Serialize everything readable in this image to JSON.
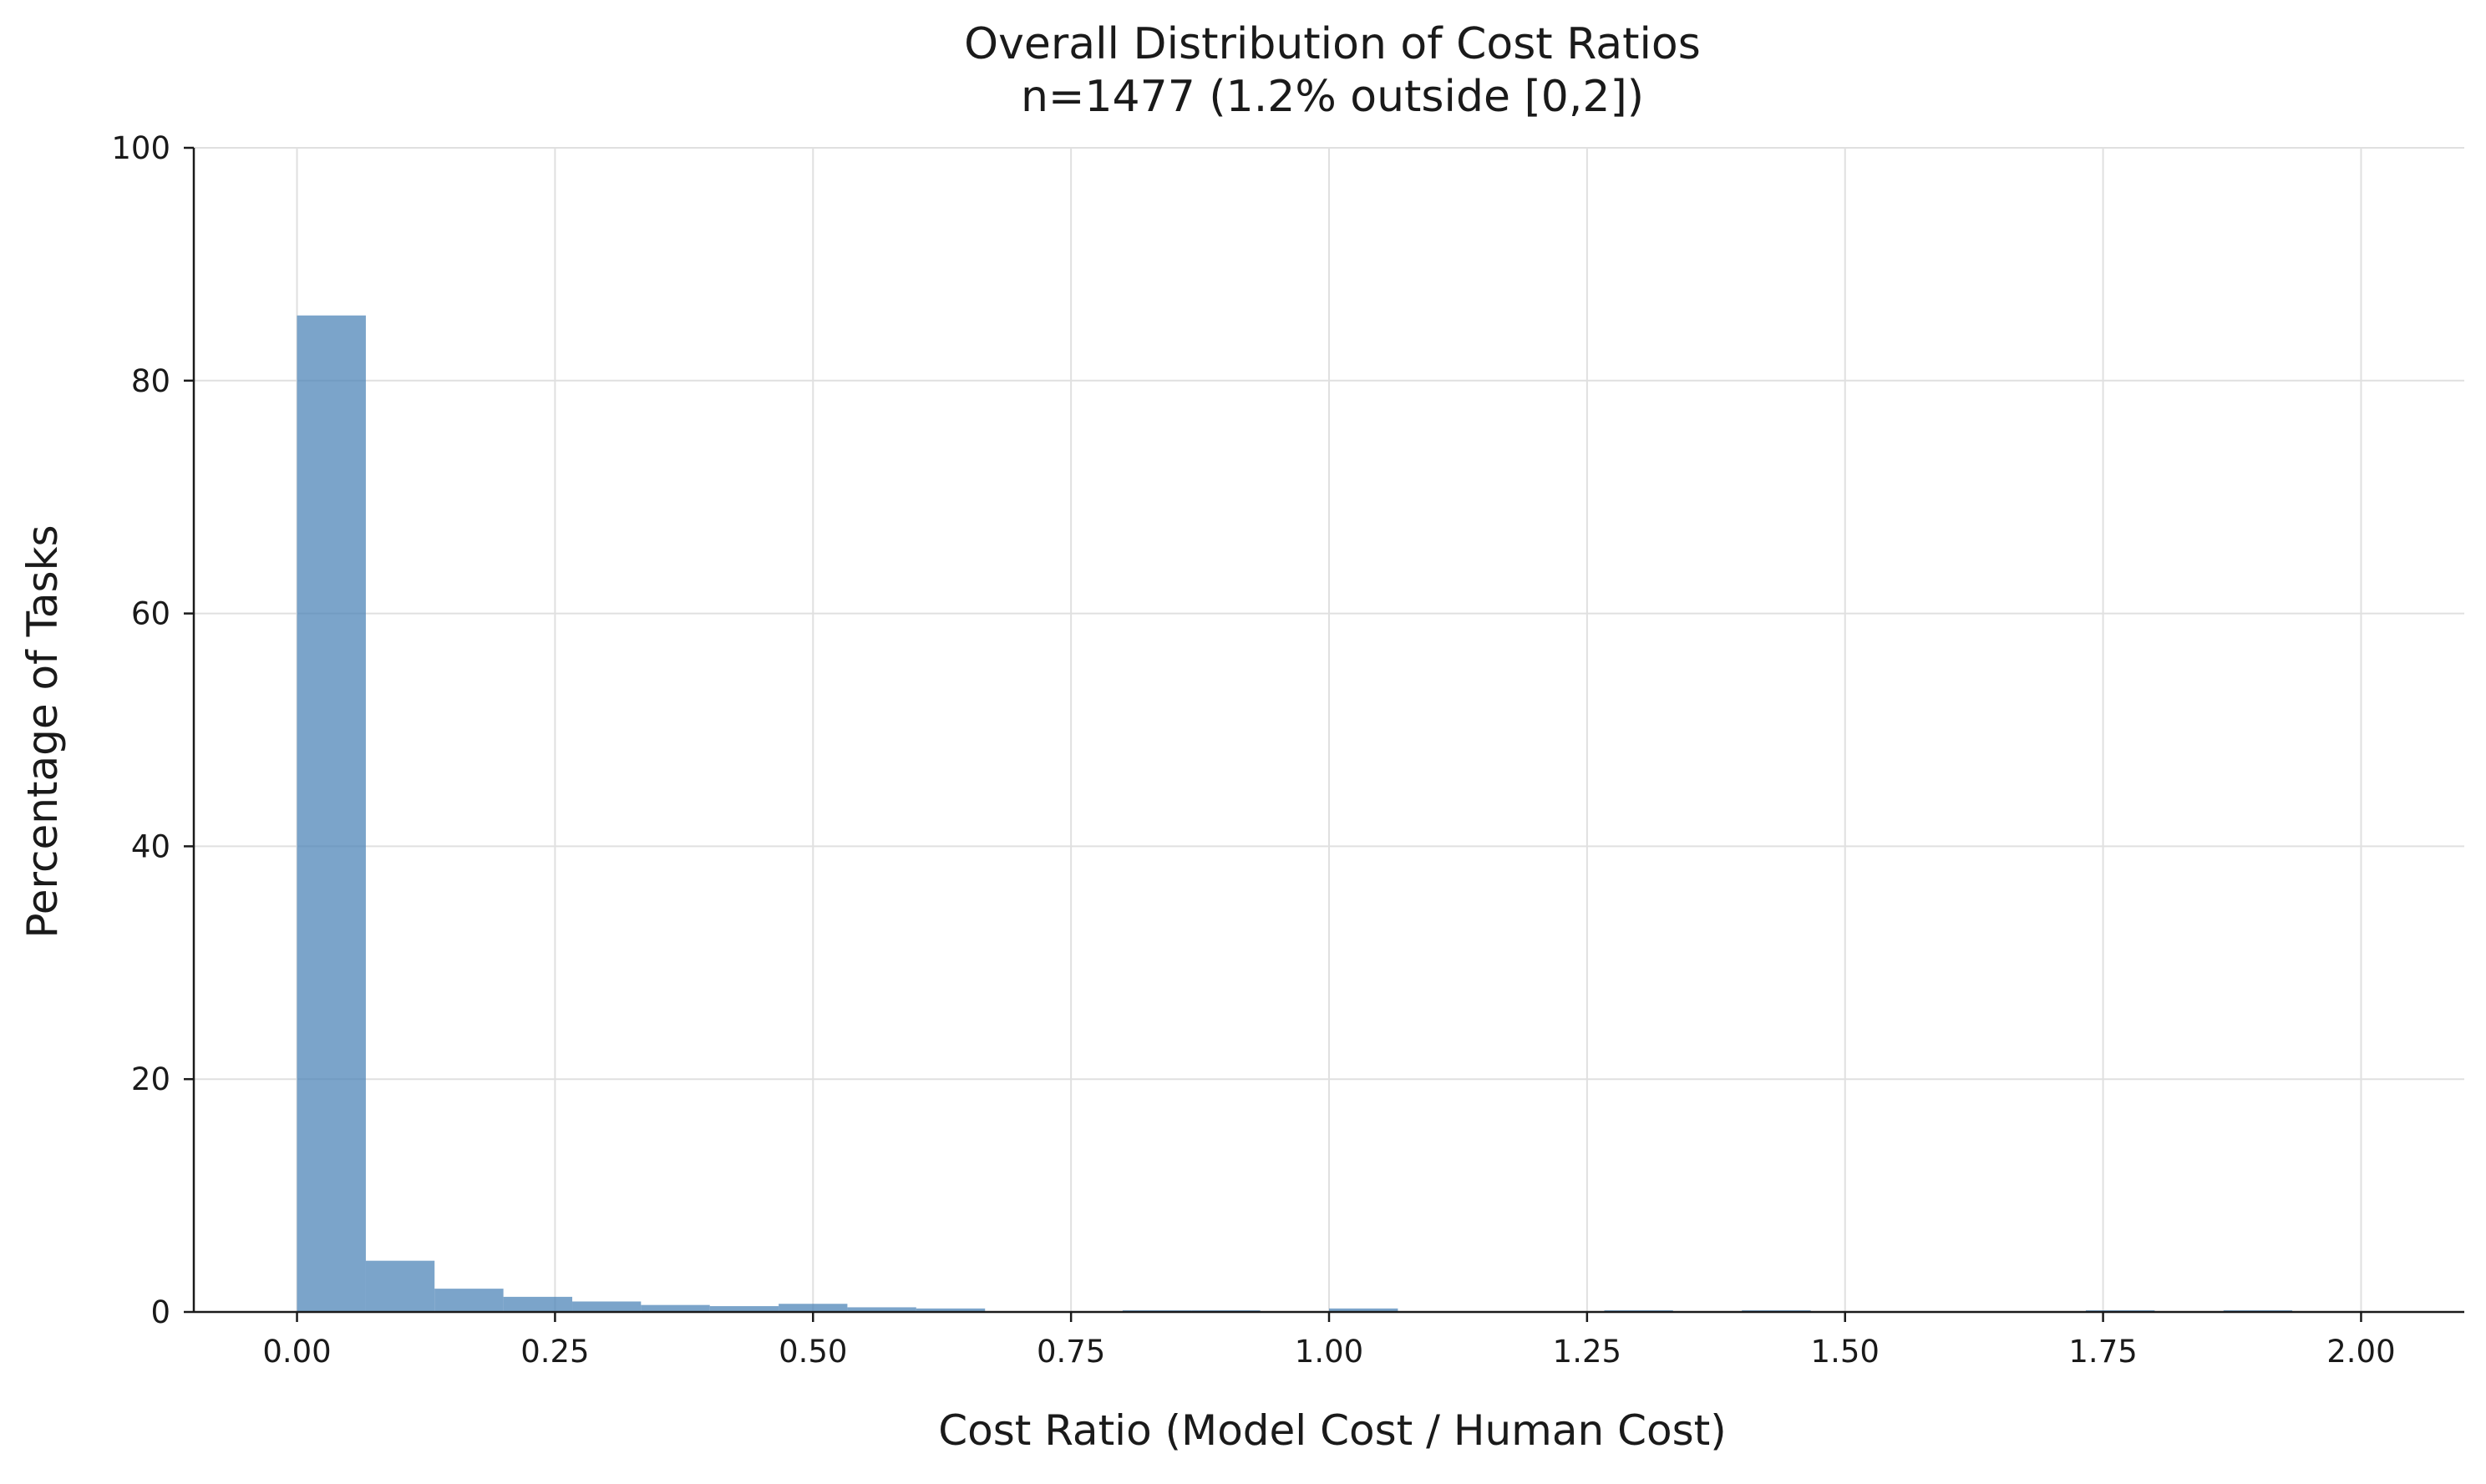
{
  "chart_data": {
    "type": "bar",
    "title": "Overall Distribution of Cost Ratios",
    "subtitle": "n=1477 (1.2% outside [0,2])",
    "xlabel": "Cost Ratio (Model Cost / Human Cost)",
    "ylabel": "Percentage of Tasks",
    "xlim": [
      -0.1,
      2.1
    ],
    "ylim": [
      0,
      100
    ],
    "x_ticks": [
      "0.00",
      "0.25",
      "0.50",
      "0.75",
      "1.00",
      "1.25",
      "1.50",
      "1.75",
      "2.00"
    ],
    "y_ticks": [
      "0",
      "20",
      "40",
      "60",
      "80",
      "100"
    ],
    "bin_width": 0.0667,
    "bins": [
      {
        "x0": 0.0,
        "x1": 0.0667,
        "value": 85.6
      },
      {
        "x0": 0.0667,
        "x1": 0.1333,
        "value": 4.4
      },
      {
        "x0": 0.1333,
        "x1": 0.2,
        "value": 2.0
      },
      {
        "x0": 0.2,
        "x1": 0.2667,
        "value": 1.3
      },
      {
        "x0": 0.2667,
        "x1": 0.3333,
        "value": 0.9
      },
      {
        "x0": 0.3333,
        "x1": 0.4,
        "value": 0.6
      },
      {
        "x0": 0.4,
        "x1": 0.4667,
        "value": 0.5
      },
      {
        "x0": 0.4667,
        "x1": 0.5333,
        "value": 0.7
      },
      {
        "x0": 0.5333,
        "x1": 0.6,
        "value": 0.4
      },
      {
        "x0": 0.6,
        "x1": 0.6667,
        "value": 0.3
      },
      {
        "x0": 0.6667,
        "x1": 0.7333,
        "value": 0.0
      },
      {
        "x0": 0.7333,
        "x1": 0.8,
        "value": 0.0
      },
      {
        "x0": 0.8,
        "x1": 0.8667,
        "value": 0.1
      },
      {
        "x0": 0.8667,
        "x1": 0.9333,
        "value": 0.1
      },
      {
        "x0": 0.9333,
        "x1": 1.0,
        "value": 0.0
      },
      {
        "x0": 1.0,
        "x1": 1.0667,
        "value": 0.3
      },
      {
        "x0": 1.0667,
        "x1": 1.1333,
        "value": 0.0
      },
      {
        "x0": 1.1333,
        "x1": 1.2,
        "value": 0.0
      },
      {
        "x0": 1.2,
        "x1": 1.2667,
        "value": 0.0
      },
      {
        "x0": 1.2667,
        "x1": 1.3333,
        "value": 0.1
      },
      {
        "x0": 1.3333,
        "x1": 1.4,
        "value": 0.0
      },
      {
        "x0": 1.4,
        "x1": 1.4667,
        "value": 0.1
      },
      {
        "x0": 1.4667,
        "x1": 1.5333,
        "value": 0.0
      },
      {
        "x0": 1.5333,
        "x1": 1.6,
        "value": 0.0
      },
      {
        "x0": 1.6,
        "x1": 1.6667,
        "value": 0.0
      },
      {
        "x0": 1.6667,
        "x1": 1.7333,
        "value": 0.0
      },
      {
        "x0": 1.7333,
        "x1": 1.8,
        "value": 0.1
      },
      {
        "x0": 1.8,
        "x1": 1.8667,
        "value": 0.0
      },
      {
        "x0": 1.8667,
        "x1": 1.9333,
        "value": 0.1
      },
      {
        "x0": 1.9333,
        "x1": 2.0,
        "value": 0.0
      }
    ],
    "grid": true,
    "colors": {
      "bar": "#4f86b8",
      "grid": "#e0e0e0",
      "axis": "#1a1a1a"
    }
  }
}
